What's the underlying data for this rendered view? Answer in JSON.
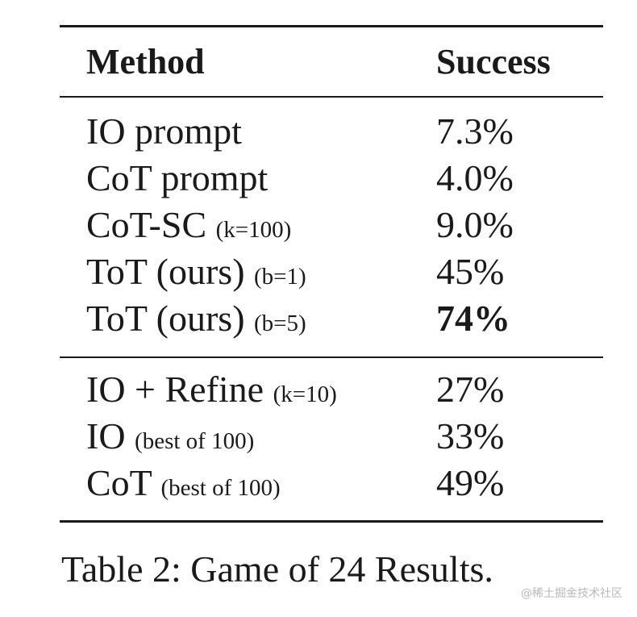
{
  "table": {
    "headers": {
      "method": "Method",
      "success": "Success"
    },
    "group1": [
      {
        "method": "IO prompt",
        "param": "",
        "success": "7.3%",
        "bold": false
      },
      {
        "method": "CoT prompt",
        "param": "",
        "success": "4.0%",
        "bold": false
      },
      {
        "method": "CoT-SC",
        "param": "(k=100)",
        "success": "9.0%",
        "bold": false
      },
      {
        "method": "ToT (ours)",
        "param": "(b=1)",
        "success": "45%",
        "bold": false
      },
      {
        "method": "ToT (ours)",
        "param": "(b=5)",
        "success": "74%",
        "bold": true
      }
    ],
    "group2": [
      {
        "method": "IO + Refine",
        "param": "(k=10)",
        "success": "27%",
        "bold": false
      },
      {
        "method": "IO",
        "param": "(best of 100)",
        "success": "33%",
        "bold": false
      },
      {
        "method": "CoT",
        "param": "(best of 100)",
        "success": "49%",
        "bold": false
      }
    ]
  },
  "caption": "Table 2: Game of 24 Results.",
  "watermark": "@稀土掘金技术社区"
}
